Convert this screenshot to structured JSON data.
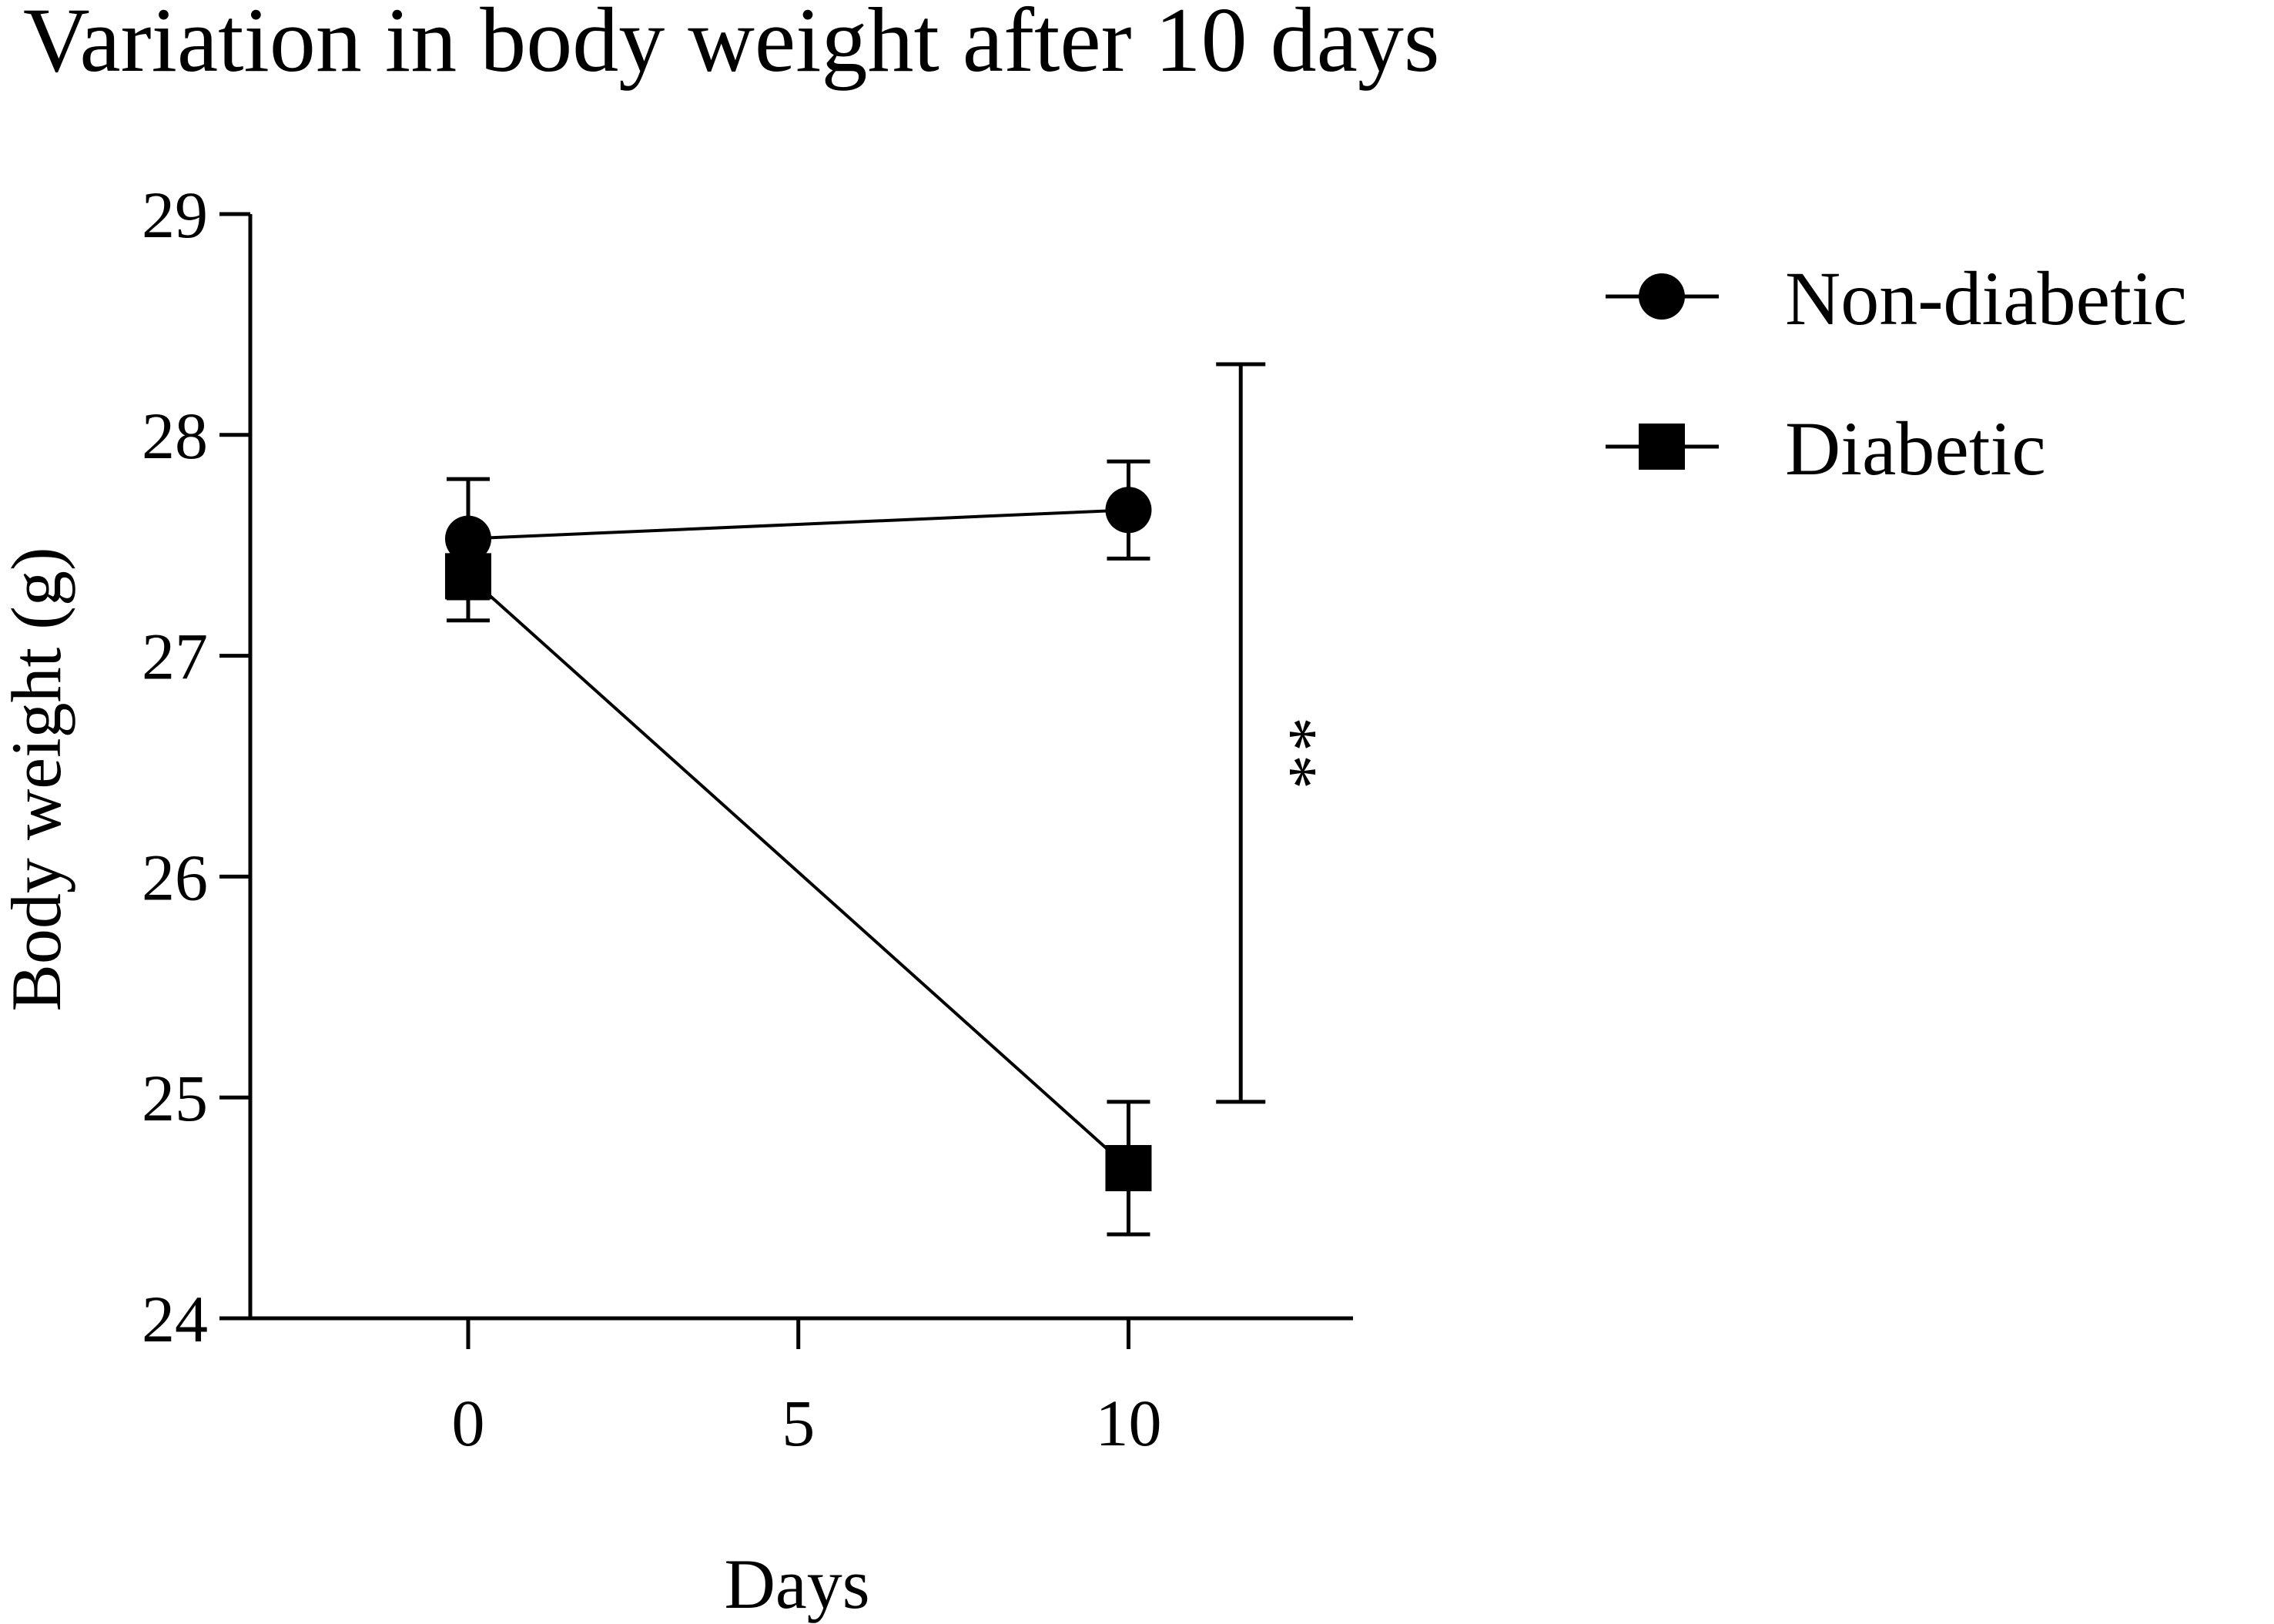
{
  "chart_data": {
    "type": "line",
    "title": "Variation in body weight after 10 days",
    "xlabel": "Days",
    "ylabel": "Body weight (g)",
    "xlim": [
      -3.3,
      13.4
    ],
    "ylim": [
      24,
      29
    ],
    "xticks": [
      0,
      5,
      10
    ],
    "xtick_labels": [
      "0",
      "5",
      "10"
    ],
    "yticks": [
      24,
      25,
      26,
      27,
      28,
      29
    ],
    "ytick_labels": [
      "24",
      "25",
      "26",
      "27",
      "28",
      "29"
    ],
    "grid": false,
    "legend": "right",
    "series": [
      {
        "name": "Non-diabetic",
        "marker": "circle",
        "color": "#000000",
        "points": [
          {
            "x": 0,
            "y": 27.53,
            "err": 0.27
          },
          {
            "x": 10,
            "y": 27.66,
            "err": 0.22
          }
        ]
      },
      {
        "name": "Diabetic",
        "marker": "square",
        "color": "#000000",
        "points": [
          {
            "x": 0,
            "y": 27.36,
            "err": 0.2
          },
          {
            "x": 10,
            "y": 24.68,
            "err": 0.3
          }
        ]
      }
    ],
    "annotations": [
      {
        "type": "significance-bracket",
        "x": 11.7,
        "y_from": 24.98,
        "y_to": 28.32,
        "text": "**"
      }
    ]
  }
}
